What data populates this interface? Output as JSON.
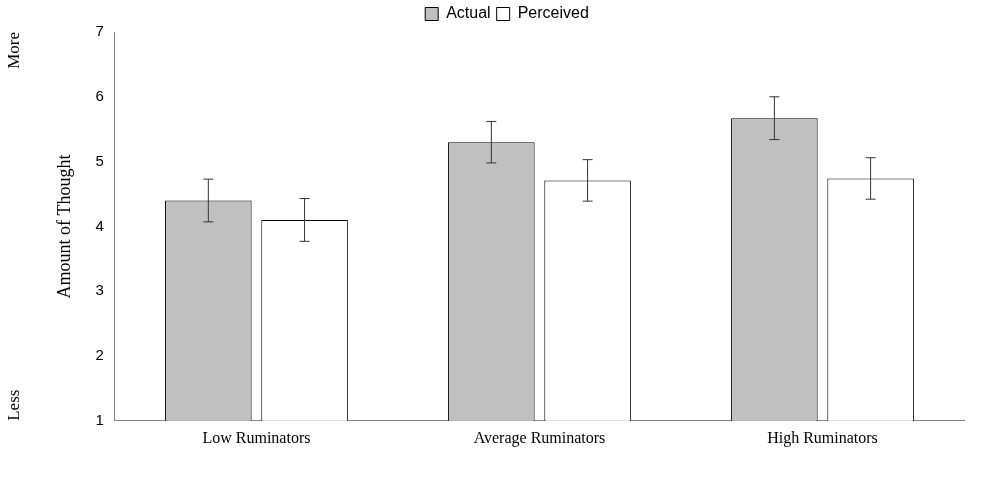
{
  "chart_data": {
    "type": "bar",
    "ylabel": "Amount of Thought",
    "ylabel_high": "More",
    "ylabel_low": "Less",
    "categories": [
      "Low Ruminators",
      "Average Ruminators",
      "High Ruminators"
    ],
    "series": [
      {
        "name": "Actual",
        "color": "#c0c0c0",
        "values": [
          4.4,
          5.3,
          5.67
        ],
        "error": [
          0.33,
          0.32,
          0.33
        ]
      },
      {
        "name": "Perceived",
        "color": "#ffffff",
        "values": [
          4.1,
          4.71,
          4.74
        ],
        "error": [
          0.33,
          0.32,
          0.32
        ]
      }
    ],
    "ylim": [
      1,
      7
    ],
    "yticks": [
      1,
      2,
      3,
      4,
      5,
      6,
      7
    ],
    "grid": false,
    "legend": "top"
  }
}
